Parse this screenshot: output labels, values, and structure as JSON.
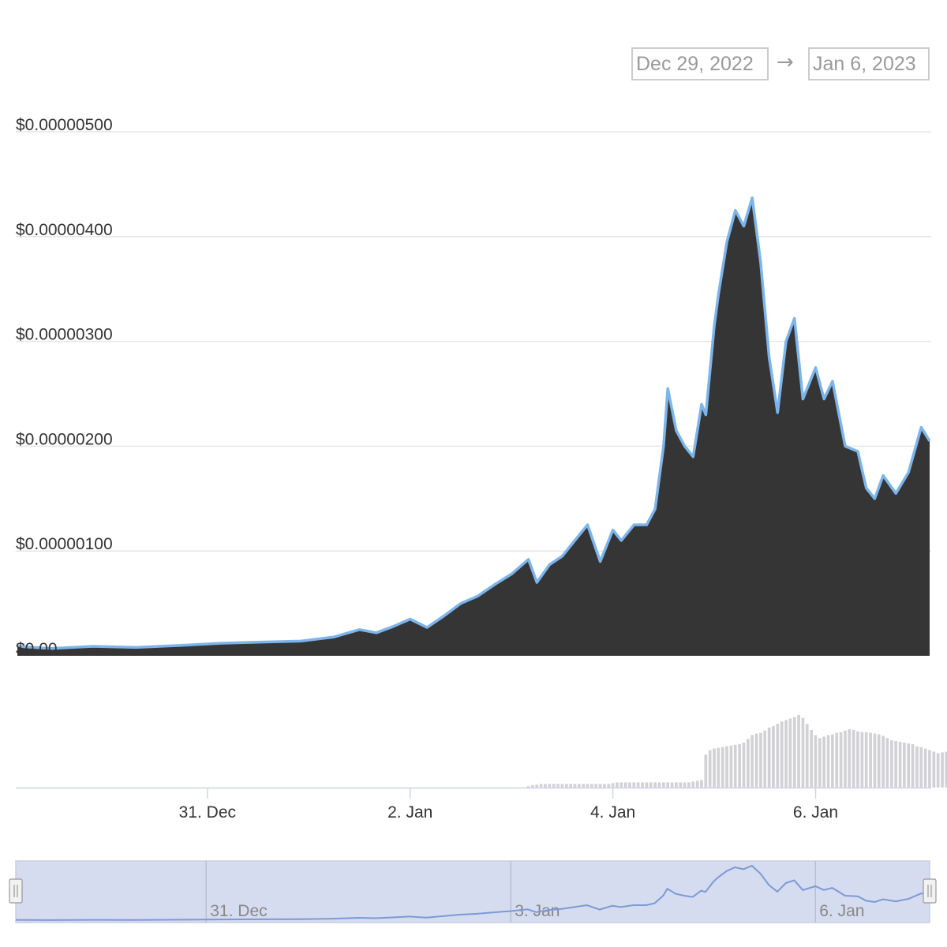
{
  "range_selector": {
    "from": "Dec 29, 2022",
    "arrow": "→",
    "to": "Jan 6, 2023"
  },
  "colors": {
    "line": "#7cb5ec",
    "area": "#353535",
    "volume": "#d2d2d6",
    "navigator_bg": "#d6dcef",
    "navigator_line": "#7c9ad6",
    "grid": "#e6e6e6",
    "axis_text": "#333333",
    "nav_text": "#888888"
  },
  "chart_data": {
    "type": "area",
    "title": "",
    "xlabel": "",
    "ylabel": "",
    "ylim": [
      0,
      5e-06
    ],
    "y_ticks": [
      "$0.00",
      "$0.00000100",
      "$0.00000200",
      "$0.00000300",
      "$0.00000400",
      "$0.00000500"
    ],
    "y_tick_values": [
      0,
      1e-06,
      2e-06,
      3e-06,
      4e-06,
      5e-06
    ],
    "x_range": [
      "2022-12-29T03:00",
      "2023-01-07T03:00"
    ],
    "x_ticks": [
      {
        "label": "31. Dec",
        "date": "2022-12-31"
      },
      {
        "label": "2. Jan",
        "date": "2023-01-02"
      },
      {
        "label": "4. Jan",
        "date": "2023-01-04"
      },
      {
        "label": "6. Jan",
        "date": "2023-01-06"
      }
    ],
    "navigator_ticks": [
      {
        "label": "31. Dec",
        "date": "2022-12-31"
      },
      {
        "label": "3. Jan",
        "date": "2023-01-03"
      },
      {
        "label": "6. Jan",
        "date": "2023-01-06"
      }
    ],
    "grid": true,
    "legend": "none",
    "series": [
      {
        "values_unit": "USD",
        "x": [
          "2022-12-29T03:00",
          "2022-12-29T11:00",
          "2022-12-29T21:00",
          "2022-12-30T07:00",
          "2022-12-30T18:00",
          "2022-12-31T03:00",
          "2022-12-31T12:00",
          "2022-12-31T22:00",
          "2023-01-01T06:00",
          "2023-01-01T12:00",
          "2023-01-01T16:00",
          "2023-01-01T20:00",
          "2023-01-02T00:00",
          "2023-01-02T04:00",
          "2023-01-02T08:00",
          "2023-01-02T12:00",
          "2023-01-02T16:00",
          "2023-01-02T20:00",
          "2023-01-03T00:00",
          "2023-01-03T04:00",
          "2023-01-03T06:00",
          "2023-01-03T09:00",
          "2023-01-03T12:00",
          "2023-01-03T15:00",
          "2023-01-03T18:00",
          "2023-01-03T21:00",
          "2023-01-04T00:00",
          "2023-01-04T02:00",
          "2023-01-04T05:00",
          "2023-01-04T08:00",
          "2023-01-04T10:00",
          "2023-01-04T12:00",
          "2023-01-04T13:00",
          "2023-01-04T15:00",
          "2023-01-04T17:00",
          "2023-01-04T19:00",
          "2023-01-04T21:00",
          "2023-01-04T22:00",
          "2023-01-05T00:00",
          "2023-01-05T01:00",
          "2023-01-05T03:00",
          "2023-01-05T05:00",
          "2023-01-05T07:00",
          "2023-01-05T09:00",
          "2023-01-05T11:00",
          "2023-01-05T13:00",
          "2023-01-05T15:00",
          "2023-01-05T17:00",
          "2023-01-05T19:00",
          "2023-01-05T21:00",
          "2023-01-06T00:00",
          "2023-01-06T02:00",
          "2023-01-06T04:00",
          "2023-01-06T07:00",
          "2023-01-06T10:00",
          "2023-01-06T12:00",
          "2023-01-06T14:00",
          "2023-01-06T16:00",
          "2023-01-06T19:00",
          "2023-01-06T22:00",
          "2023-01-07T01:00",
          "2023-01-07T03:00"
        ],
        "values": [
          9e-08,
          7e-08,
          9e-08,
          8e-08,
          1e-07,
          1.2e-07,
          1.3e-07,
          1.4e-07,
          1.8e-07,
          2.5e-07,
          2.2e-07,
          2.8e-07,
          3.5e-07,
          2.7e-07,
          3.8e-07,
          5e-07,
          5.7e-07,
          6.8e-07,
          7.8e-07,
          9.2e-07,
          7e-07,
          8.7e-07,
          9.5e-07,
          1.1e-06,
          1.25e-06,
          9e-07,
          1.2e-06,
          1.1e-06,
          1.25e-06,
          1.25e-06,
          1.4e-06,
          2e-06,
          2.55e-06,
          2.15e-06,
          2e-06,
          1.9e-06,
          2.4e-06,
          2.3e-06,
          3.15e-06,
          3.45e-06,
          3.95e-06,
          4.25e-06,
          4.1e-06,
          4.37e-06,
          3.75e-06,
          2.85e-06,
          2.32e-06,
          3e-06,
          3.22e-06,
          2.45e-06,
          2.75e-06,
          2.45e-06,
          2.62e-06,
          2e-06,
          1.95e-06,
          1.6e-06,
          1.5e-06,
          1.72e-06,
          1.55e-06,
          1.75e-06,
          2.18e-06,
          2.05e-06
        ]
      },
      {
        "name": "",
        "type": "column",
        "x_start": "2023-01-03T04:00",
        "x_step_hours": 1,
        "values": [
          0.02,
          0.03,
          0.04,
          0.05,
          0.05,
          0.05,
          0.05,
          0.05,
          0.05,
          0.05,
          0.05,
          0.05,
          0.05,
          0.05,
          0.05,
          0.05,
          0.05,
          0.05,
          0.05,
          0.05,
          0.06,
          0.07,
          0.07,
          0.07,
          0.07,
          0.07,
          0.07,
          0.07,
          0.07,
          0.07,
          0.07,
          0.07,
          0.07,
          0.07,
          0.07,
          0.07,
          0.07,
          0.07,
          0.07,
          0.08,
          0.09,
          0.1,
          0.44,
          0.5,
          0.52,
          0.53,
          0.54,
          0.55,
          0.56,
          0.57,
          0.58,
          0.6,
          0.65,
          0.7,
          0.72,
          0.73,
          0.76,
          0.8,
          0.82,
          0.85,
          0.88,
          0.9,
          0.92,
          0.94,
          0.97,
          0.93,
          0.85,
          0.77,
          0.7,
          0.66,
          0.68,
          0.7,
          0.71,
          0.73,
          0.74,
          0.76,
          0.78,
          0.77,
          0.75,
          0.74,
          0.74,
          0.73,
          0.72,
          0.71,
          0.69,
          0.66,
          0.63,
          0.62,
          0.61,
          0.6,
          0.59,
          0.58,
          0.55,
          0.54,
          0.52,
          0.5,
          0.48,
          0.46,
          0.47,
          0.48,
          0.47
        ]
      }
    ]
  }
}
